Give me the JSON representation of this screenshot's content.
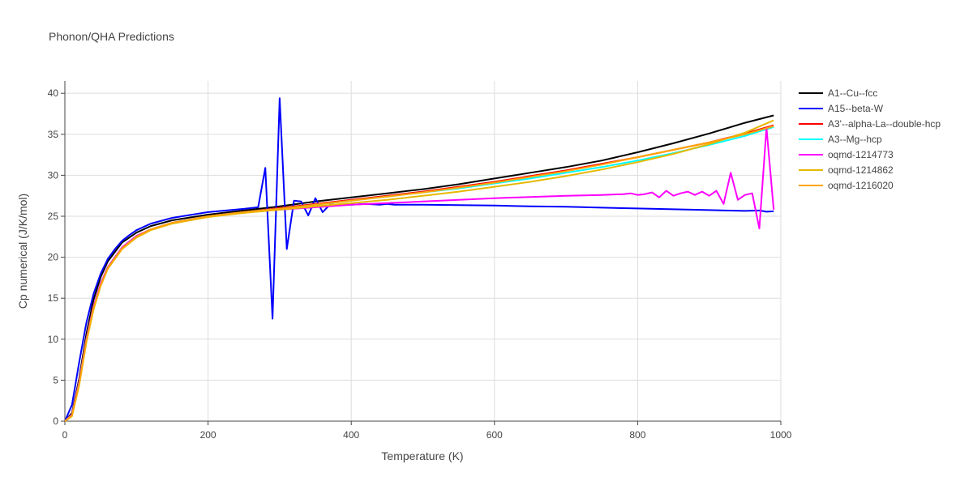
{
  "chart_data": {
    "type": "line",
    "title": "Phonon/QHA Predictions",
    "xlabel": "Temperature (K)",
    "ylabel": "Cp numerical (J/K/mol)",
    "xlim": [
      0,
      1000
    ],
    "ylim": [
      0,
      41.5
    ],
    "xticks": [
      0,
      200,
      400,
      600,
      800,
      1000
    ],
    "xtick_labels": [
      "0",
      "200",
      "400",
      "600",
      "800",
      "1000"
    ],
    "yticks": [
      0,
      5,
      10,
      15,
      20,
      25,
      30,
      35,
      40
    ],
    "ytick_labels": [
      "0",
      "5",
      "10",
      "15",
      "20",
      "25",
      "30",
      "35",
      "40"
    ],
    "grid": true,
    "legend_position": "right",
    "series": [
      {
        "name": "A1--Cu--fcc",
        "color": "#000000",
        "x": [
          0,
          10,
          20,
          30,
          40,
          50,
          60,
          80,
          100,
          120,
          150,
          200,
          250,
          300,
          350,
          400,
          450,
          500,
          550,
          600,
          650,
          700,
          750,
          800,
          850,
          900,
          950,
          990
        ],
        "y": [
          0,
          1.0,
          5.2,
          10.6,
          14.8,
          17.6,
          19.5,
          21.8,
          23.0,
          23.8,
          24.5,
          25.2,
          25.7,
          26.2,
          26.8,
          27.3,
          27.8,
          28.3,
          28.9,
          29.6,
          30.3,
          31.0,
          31.8,
          32.8,
          33.9,
          35.1,
          36.4,
          37.3
        ]
      },
      {
        "name": "A15--beta-W",
        "color": "#0000ff",
        "x": [
          0,
          10,
          20,
          30,
          40,
          50,
          60,
          70,
          80,
          90,
          100,
          120,
          150,
          200,
          250,
          260,
          270,
          280,
          290,
          300,
          310,
          320,
          330,
          340,
          350,
          360,
          370,
          380,
          400,
          420,
          440,
          450,
          460,
          500,
          550,
          600,
          650,
          700,
          750,
          800,
          850,
          900,
          950,
          970,
          980,
          990
        ],
        "y": [
          0,
          2.0,
          7.2,
          12.0,
          15.5,
          18.0,
          19.8,
          21.0,
          22.0,
          22.7,
          23.3,
          24.1,
          24.8,
          25.5,
          25.9,
          26.0,
          26.1,
          30.9,
          12.5,
          39.4,
          21.0,
          26.9,
          26.8,
          25.1,
          27.2,
          25.5,
          26.4,
          26.4,
          26.4,
          26.5,
          26.4,
          26.5,
          26.4,
          26.4,
          26.35,
          26.3,
          26.2,
          26.15,
          26.05,
          25.95,
          25.85,
          25.75,
          25.65,
          25.7,
          25.55,
          25.6
        ]
      },
      {
        "name": "A3'--alpha-La--double-hcp",
        "color": "#ff0000",
        "x": [
          0,
          10,
          20,
          30,
          40,
          50,
          60,
          80,
          100,
          120,
          150,
          200,
          250,
          300,
          350,
          400,
          450,
          500,
          550,
          600,
          650,
          700,
          750,
          800,
          850,
          900,
          950,
          990
        ],
        "y": [
          0,
          0.8,
          4.8,
          10.0,
          14.0,
          16.8,
          18.8,
          21.2,
          22.6,
          23.4,
          24.2,
          25.0,
          25.5,
          26.0,
          26.5,
          27.0,
          27.5,
          28.0,
          28.6,
          29.2,
          29.9,
          30.6,
          31.4,
          32.2,
          33.1,
          34.0,
          35.1,
          36.1
        ]
      },
      {
        "name": "A3--Mg--hcp",
        "color": "#00ffff",
        "x": [
          0,
          10,
          20,
          30,
          40,
          50,
          60,
          80,
          100,
          120,
          150,
          200,
          250,
          300,
          350,
          400,
          450,
          500,
          550,
          600,
          650,
          700,
          750,
          800,
          850,
          900,
          950,
          990
        ],
        "y": [
          0,
          0.8,
          4.8,
          10.0,
          14.0,
          16.8,
          18.8,
          21.2,
          22.6,
          23.4,
          24.2,
          25.0,
          25.5,
          25.9,
          26.4,
          26.9,
          27.4,
          27.9,
          28.4,
          29.0,
          29.6,
          30.3,
          31.0,
          31.8,
          32.7,
          33.7,
          34.8,
          35.9
        ]
      },
      {
        "name": "oqmd-1214773",
        "color": "#ff00ff",
        "x": [
          0,
          10,
          20,
          30,
          40,
          50,
          60,
          80,
          100,
          120,
          150,
          200,
          250,
          300,
          350,
          400,
          450,
          500,
          550,
          600,
          650,
          700,
          750,
          780,
          790,
          800,
          810,
          820,
          830,
          840,
          850,
          860,
          870,
          880,
          890,
          900,
          910,
          920,
          930,
          940,
          950,
          960,
          970,
          980,
          990
        ],
        "y": [
          0,
          0.8,
          4.8,
          10.0,
          14.0,
          16.8,
          18.8,
          21.2,
          22.6,
          23.4,
          24.2,
          25.0,
          25.5,
          25.8,
          26.1,
          26.4,
          26.6,
          26.8,
          27.0,
          27.2,
          27.35,
          27.5,
          27.6,
          27.7,
          27.8,
          27.6,
          27.7,
          27.9,
          27.3,
          28.1,
          27.5,
          27.8,
          28.0,
          27.6,
          28.0,
          27.5,
          28.1,
          26.5,
          30.3,
          27.0,
          27.6,
          27.8,
          23.5,
          35.8,
          25.8
        ]
      },
      {
        "name": "oqmd-1214862",
        "color": "#e6b800",
        "x": [
          0,
          10,
          20,
          30,
          40,
          50,
          60,
          80,
          100,
          120,
          150,
          200,
          250,
          300,
          350,
          400,
          450,
          500,
          550,
          600,
          650,
          700,
          750,
          800,
          850,
          900,
          950,
          990
        ],
        "y": [
          0,
          0.6,
          4.4,
          9.6,
          13.6,
          16.5,
          18.6,
          21.0,
          22.4,
          23.3,
          24.1,
          24.9,
          25.4,
          25.8,
          26.2,
          26.6,
          27.0,
          27.5,
          28.0,
          28.6,
          29.2,
          29.9,
          30.7,
          31.6,
          32.6,
          33.8,
          35.2,
          36.7
        ]
      },
      {
        "name": "oqmd-1216020",
        "color": "#ffa500",
        "x": [
          0,
          10,
          20,
          30,
          40,
          50,
          60,
          80,
          100,
          120,
          150,
          200,
          250,
          300,
          350,
          400,
          450,
          500,
          550,
          600,
          650,
          700,
          750,
          800,
          850,
          900,
          950,
          990
        ],
        "y": [
          0,
          0.7,
          4.6,
          9.8,
          13.8,
          16.6,
          18.7,
          21.1,
          22.5,
          23.4,
          24.2,
          25.0,
          25.5,
          25.9,
          26.4,
          26.9,
          27.4,
          27.9,
          28.5,
          29.1,
          29.8,
          30.5,
          31.3,
          32.2,
          33.1,
          34.0,
          35.0,
          36.0
        ]
      }
    ]
  }
}
